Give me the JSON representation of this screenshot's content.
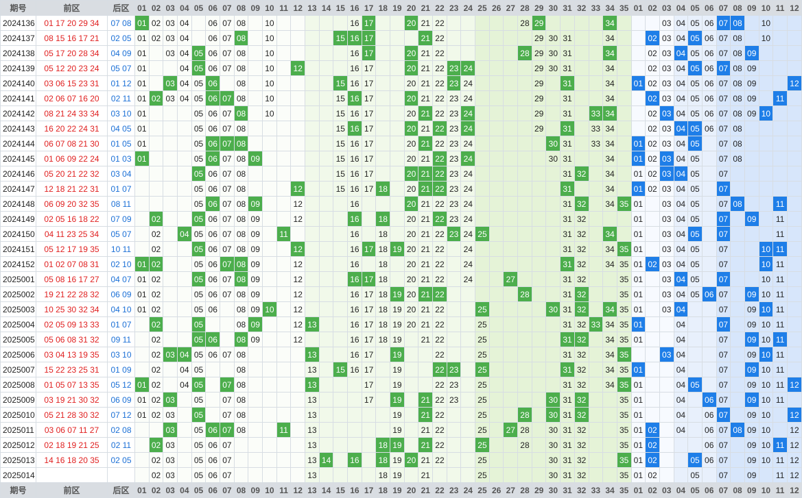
{
  "header": {
    "period": "期号",
    "front": "前区",
    "back": "后区",
    "front_nums": [
      "01",
      "02",
      "03",
      "04",
      "05",
      "06",
      "07",
      "08",
      "09",
      "10",
      "11",
      "12",
      "13",
      "14",
      "15",
      "16",
      "17",
      "18",
      "19",
      "20",
      "21",
      "22",
      "23",
      "24",
      "25",
      "26",
      "27",
      "28",
      "29",
      "30",
      "31",
      "32",
      "33",
      "34",
      "35"
    ],
    "back_nums": [
      "01",
      "02",
      "03",
      "04",
      "05",
      "06",
      "07",
      "08",
      "09",
      "10",
      "11",
      "12"
    ]
  },
  "rows": [
    {
      "p": "2024136",
      "f": [
        "01",
        "17",
        "20",
        "29",
        "34"
      ],
      "b": [
        "07",
        "08"
      ],
      "fm": [
        2,
        3,
        4,
        6,
        7,
        8,
        10,
        16,
        21,
        22,
        28
      ],
      "bm": [
        3,
        4,
        5,
        6,
        10
      ]
    },
    {
      "p": "2024137",
      "f": [
        "08",
        "15",
        "16",
        "17",
        "21"
      ],
      "b": [
        "02",
        "05"
      ],
      "fm": [
        1,
        2,
        3,
        4,
        6,
        7,
        10,
        22,
        29,
        30,
        31,
        34
      ],
      "bm": [
        3,
        4,
        6,
        7,
        8,
        10
      ]
    },
    {
      "p": "2024138",
      "f": [
        "05",
        "17",
        "20",
        "28",
        "34"
      ],
      "b": [
        "04",
        "09"
      ],
      "fm": [
        1,
        3,
        4,
        6,
        7,
        8,
        10,
        16,
        21,
        22,
        29,
        30,
        31
      ],
      "bm": [
        2,
        3,
        5,
        6,
        7,
        8
      ]
    },
    {
      "p": "2024139",
      "f": [
        "05",
        "12",
        "20",
        "23",
        "24"
      ],
      "b": [
        "05",
        "07"
      ],
      "fm": [
        1,
        4,
        6,
        7,
        8,
        10,
        16,
        17,
        21,
        22,
        29,
        30,
        31,
        34
      ],
      "bm": [
        2,
        3,
        4,
        6,
        8,
        9
      ]
    },
    {
      "p": "2024140",
      "f": [
        "03",
        "06",
        "15",
        "23",
        "31"
      ],
      "b": [
        "01",
        "12"
      ],
      "fm": [
        1,
        4,
        5,
        8,
        10,
        16,
        17,
        20,
        21,
        22,
        24,
        29,
        34
      ],
      "bm": [
        2,
        3,
        4,
        5,
        6,
        7,
        8,
        9
      ]
    },
    {
      "p": "2024141",
      "f": [
        "02",
        "06",
        "07",
        "16",
        "20"
      ],
      "b": [
        "02",
        "11"
      ],
      "fm": [
        1,
        3,
        4,
        5,
        8,
        10,
        15,
        17,
        21,
        22,
        23,
        24,
        29,
        31,
        34
      ],
      "bm": [
        3,
        4,
        5,
        6,
        7,
        8,
        9
      ]
    },
    {
      "p": "2024142",
      "f": [
        "08",
        "21",
        "24",
        "33",
        "34"
      ],
      "b": [
        "03",
        "10"
      ],
      "fm": [
        1,
        5,
        6,
        7,
        10,
        15,
        16,
        17,
        20,
        22,
        23,
        29,
        31
      ],
      "bm": [
        2,
        4,
        5,
        6,
        7,
        8,
        9
      ]
    },
    {
      "p": "2024143",
      "f": [
        "16",
        "20",
        "22",
        "24",
        "31"
      ],
      "b": [
        "04",
        "05"
      ],
      "fm": [
        1,
        5,
        6,
        7,
        8,
        15,
        17,
        21,
        23,
        29,
        33,
        34
      ],
      "bm": [
        2,
        3,
        6,
        7,
        8
      ]
    },
    {
      "p": "2024144",
      "f": [
        "06",
        "07",
        "08",
        "21",
        "30"
      ],
      "b": [
        "01",
        "05"
      ],
      "fm": [
        1,
        5,
        15,
        16,
        17,
        20,
        22,
        23,
        24,
        31,
        33,
        34
      ],
      "bm": [
        2,
        3,
        4,
        7,
        8
      ]
    },
    {
      "p": "2024145",
      "f": [
        "01",
        "06",
        "09",
        "22",
        "24"
      ],
      "b": [
        "01",
        "03"
      ],
      "fm": [
        5,
        7,
        8,
        15,
        16,
        17,
        20,
        21,
        23,
        30,
        31,
        34
      ],
      "bm": [
        2,
        4,
        5,
        7,
        8
      ]
    },
    {
      "p": "2024146",
      "f": [
        "05",
        "20",
        "21",
        "22",
        "32"
      ],
      "b": [
        "03",
        "04"
      ],
      "fm": [
        6,
        7,
        8,
        15,
        16,
        17,
        23,
        24,
        31,
        34
      ],
      "bm": [
        1,
        2,
        5,
        7
      ]
    },
    {
      "p": "2024147",
      "f": [
        "12",
        "18",
        "21",
        "22",
        "31"
      ],
      "b": [
        "01",
        "07"
      ],
      "fm": [
        5,
        6,
        7,
        8,
        15,
        16,
        17,
        20,
        23,
        24,
        34
      ],
      "bm": [
        2,
        3,
        4,
        5
      ]
    },
    {
      "p": "2024148",
      "f": [
        "06",
        "09",
        "20",
        "32",
        "35"
      ],
      "b": [
        "08",
        "11"
      ],
      "fm": [
        5,
        7,
        8,
        12,
        16,
        21,
        22,
        23,
        24,
        31,
        34
      ],
      "bm": [
        1,
        3,
        4,
        5,
        7
      ]
    },
    {
      "p": "2024149",
      "f": [
        "02",
        "05",
        "16",
        "18",
        "22"
      ],
      "b": [
        "07",
        "09"
      ],
      "fm": [
        6,
        7,
        8,
        9,
        12,
        20,
        21,
        23,
        24,
        31,
        32
      ],
      "bm": [
        1,
        3,
        4,
        5,
        11
      ]
    },
    {
      "p": "2024150",
      "f": [
        "04",
        "11",
        "23",
        "25",
        "34"
      ],
      "b": [
        "05",
        "07"
      ],
      "fm": [
        2,
        5,
        6,
        7,
        8,
        9,
        16,
        18,
        20,
        21,
        22,
        24,
        31,
        32
      ],
      "bm": [
        1,
        3,
        4,
        11
      ]
    },
    {
      "p": "2024151",
      "f": [
        "05",
        "12",
        "17",
        "19",
        "35"
      ],
      "b": [
        "10",
        "11"
      ],
      "fm": [
        2,
        6,
        7,
        8,
        9,
        16,
        18,
        20,
        21,
        22,
        24,
        31,
        32,
        34
      ],
      "bm": [
        1,
        3,
        4,
        5,
        7
      ]
    },
    {
      "p": "2024152",
      "f": [
        "01",
        "02",
        "07",
        "08",
        "31"
      ],
      "b": [
        "02",
        "10"
      ],
      "fm": [
        5,
        6,
        9,
        12,
        16,
        18,
        20,
        21,
        22,
        24,
        32,
        34,
        35
      ],
      "bm": [
        1,
        3,
        4,
        5,
        7,
        11
      ]
    },
    {
      "p": "2025001",
      "f": [
        "05",
        "08",
        "16",
        "17",
        "27"
      ],
      "b": [
        "04",
        "07"
      ],
      "fm": [
        1,
        2,
        6,
        7,
        9,
        12,
        18,
        20,
        21,
        22,
        24,
        31,
        32,
        35
      ],
      "bm": [
        1,
        3,
        5,
        10,
        11
      ]
    },
    {
      "p": "2025002",
      "f": [
        "19",
        "21",
        "22",
        "28",
        "32"
      ],
      "b": [
        "06",
        "09"
      ],
      "fm": [
        1,
        2,
        5,
        6,
        7,
        8,
        9,
        12,
        16,
        17,
        18,
        20,
        31,
        35
      ],
      "bm": [
        1,
        3,
        4,
        5,
        7,
        10,
        11
      ]
    },
    {
      "p": "2025003",
      "f": [
        "10",
        "25",
        "30",
        "32",
        "34"
      ],
      "b": [
        "04",
        "10"
      ],
      "fm": [
        1,
        2,
        5,
        6,
        8,
        9,
        12,
        16,
        17,
        18,
        19,
        20,
        21,
        22,
        31,
        35
      ],
      "bm": [
        1,
        3,
        7,
        9,
        11
      ]
    },
    {
      "p": "2025004",
      "f": [
        "02",
        "05",
        "09",
        "13",
        "33"
      ],
      "b": [
        "01",
        "07"
      ],
      "fm": [
        8,
        12,
        16,
        17,
        18,
        19,
        20,
        21,
        22,
        25,
        31,
        32,
        34,
        35
      ],
      "bm": [
        4,
        9,
        10,
        11
      ]
    },
    {
      "p": "2025005",
      "f": [
        "05",
        "06",
        "08",
        "31",
        "32"
      ],
      "b": [
        "09",
        "11"
      ],
      "fm": [
        2,
        9,
        12,
        16,
        17,
        18,
        19,
        21,
        22,
        25,
        34,
        35
      ],
      "bm": [
        1,
        4,
        7,
        10
      ]
    },
    {
      "p": "2025006",
      "f": [
        "03",
        "04",
        "13",
        "19",
        "35"
      ],
      "b": [
        "03",
        "10"
      ],
      "fm": [
        2,
        5,
        6,
        7,
        8,
        16,
        17,
        22,
        25,
        31,
        32,
        34
      ],
      "bm": [
        4,
        7,
        9,
        11
      ]
    },
    {
      "p": "2025007",
      "f": [
        "15",
        "22",
        "23",
        "25",
        "31"
      ],
      "b": [
        "01",
        "09"
      ],
      "fm": [
        2,
        4,
        5,
        8,
        13,
        16,
        17,
        19,
        32,
        34,
        35
      ],
      "bm": [
        4,
        7,
        10,
        11
      ]
    },
    {
      "p": "2025008",
      "f": [
        "01",
        "05",
        "07",
        "13",
        "35"
      ],
      "b": [
        "05",
        "12"
      ],
      "fm": [
        2,
        4,
        8,
        17,
        19,
        22,
        23,
        25,
        31,
        32,
        34
      ],
      "bm": [
        1,
        4,
        7,
        9,
        10,
        11
      ]
    },
    {
      "p": "2025009",
      "f": [
        "03",
        "19",
        "21",
        "30",
        "32"
      ],
      "b": [
        "06",
        "09"
      ],
      "fm": [
        1,
        2,
        5,
        7,
        8,
        13,
        17,
        22,
        23,
        25,
        31,
        35
      ],
      "bm": [
        1,
        4,
        7,
        10,
        11
      ]
    },
    {
      "p": "2025010",
      "f": [
        "05",
        "21",
        "28",
        "30",
        "32"
      ],
      "b": [
        "07",
        "12"
      ],
      "fm": [
        1,
        2,
        3,
        7,
        8,
        13,
        19,
        22,
        25,
        31,
        35
      ],
      "bm": [
        1,
        4,
        6,
        9,
        10
      ]
    },
    {
      "p": "2025011",
      "f": [
        "03",
        "06",
        "07",
        "11",
        "27"
      ],
      "b": [
        "02",
        "08"
      ],
      "fm": [
        5,
        8,
        13,
        19,
        21,
        22,
        25,
        28,
        30,
        31,
        32,
        35
      ],
      "bm": [
        1,
        4,
        6,
        7,
        9,
        10,
        12
      ]
    },
    {
      "p": "2025012",
      "f": [
        "02",
        "18",
        "19",
        "21",
        "25"
      ],
      "b": [
        "02",
        "11"
      ],
      "fm": [
        3,
        5,
        6,
        7,
        13,
        22,
        28,
        30,
        31,
        32,
        35
      ],
      "bm": [
        1,
        6,
        7,
        9,
        10,
        12
      ]
    },
    {
      "p": "2025013",
      "f": [
        "14",
        "16",
        "18",
        "20",
        "35"
      ],
      "b": [
        "02",
        "05"
      ],
      "fm": [
        2,
        3,
        5,
        6,
        7,
        13,
        19,
        21,
        22,
        25,
        30,
        31,
        32
      ],
      "bm": [
        1,
        6,
        7,
        9,
        10,
        11,
        12
      ]
    },
    {
      "p": "2025014",
      "f": [],
      "b": [],
      "fm": [
        2,
        3,
        5,
        6,
        7,
        13,
        18,
        19,
        21,
        25,
        30,
        31,
        32,
        35
      ],
      "bm": [
        1,
        2,
        5,
        7,
        9,
        11,
        12
      ]
    }
  ]
}
